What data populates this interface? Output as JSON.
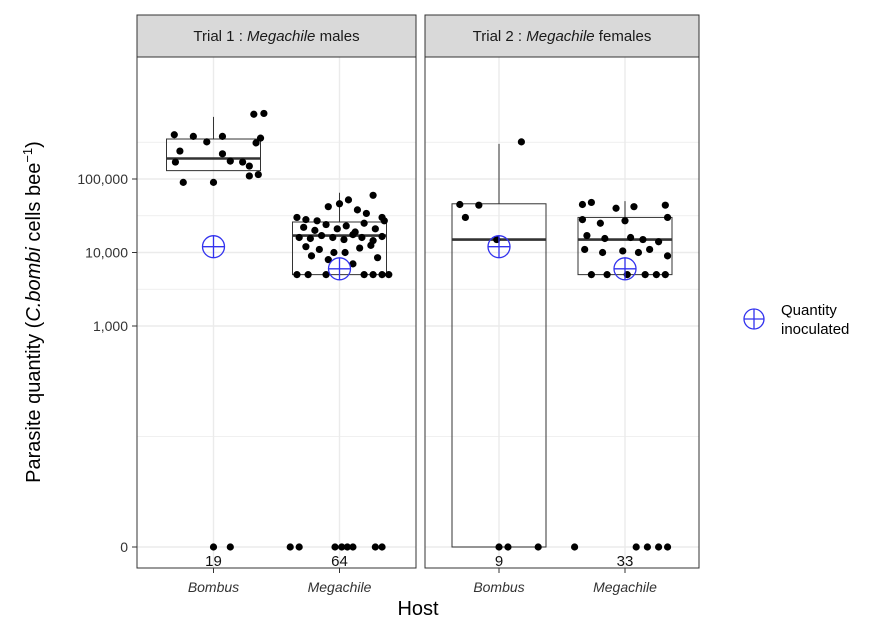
{
  "chart_data": {
    "type": "box-scatter",
    "xlabel": "Host",
    "ylabel": {
      "prefix": "Parasite quantity (",
      "italic": "C.bombi",
      "suffix": " cells bee",
      "superscript": "−1",
      "close": ")"
    },
    "y_scale": "log",
    "y_ticks": [
      {
        "value": 0,
        "label": "0"
      },
      {
        "value": 1000,
        "label": "1,000"
      },
      {
        "value": 10000,
        "label": "10,000"
      },
      {
        "value": 100000,
        "label": "100,000"
      }
    ],
    "categories": [
      "Bombus",
      "Megachile"
    ],
    "legend": {
      "label_line1": "Quantity",
      "label_line2": "inoculated",
      "position": "right"
    },
    "colors": {
      "inoculated": "#3333ee",
      "points": "#000000",
      "grid": "#ebebeb",
      "strip_bg": "#d9d9d9"
    },
    "panels": [
      {
        "strip": {
          "prefix": "Trial 1 : ",
          "italic": "Megachile",
          "suffix": " males"
        },
        "groups": [
          {
            "host": "Bombus",
            "n": "19",
            "inoculated": 12000,
            "box": {
              "lower": 130000,
              "q1": 130000,
              "median": 190000,
              "q3": 350000,
              "upper": 700000
            },
            "points": [
              {
                "x": -0.35,
                "y": 400000
              },
              {
                "x": -0.18,
                "y": 380000
              },
              {
                "x": 0.08,
                "y": 380000
              },
              {
                "x": 0.42,
                "y": 360000
              },
              {
                "x": 0.38,
                "y": 310000
              },
              {
                "x": -0.06,
                "y": 320000
              },
              {
                "x": -0.3,
                "y": 240000
              },
              {
                "x": 0.08,
                "y": 220000
              },
              {
                "x": -0.34,
                "y": 170000
              },
              {
                "x": 0.15,
                "y": 175000
              },
              {
                "x": 0.26,
                "y": 170000
              },
              {
                "x": 0.32,
                "y": 150000
              },
              {
                "x": 0.4,
                "y": 115000
              },
              {
                "x": 0.32,
                "y": 110000
              },
              {
                "x": -0.27,
                "y": 90000
              },
              {
                "x": 0.0,
                "y": 90000
              },
              {
                "x": 0.45,
                "y": 780000
              },
              {
                "x": 0.36,
                "y": 760000
              },
              {
                "x": 0.0,
                "y": 0
              },
              {
                "x": 0.15,
                "y": 0
              }
            ]
          },
          {
            "host": "Megachile",
            "n": "64",
            "inoculated": 6000,
            "box": {
              "lower": 5000,
              "q1": 5000,
              "median": 17000,
              "q3": 26000,
              "upper": 65000
            },
            "points": [
              {
                "x": -0.38,
                "y": 30000
              },
              {
                "x": -0.3,
                "y": 28000
              },
              {
                "x": -0.2,
                "y": 27000
              },
              {
                "x": -0.1,
                "y": 42000
              },
              {
                "x": 0.0,
                "y": 46000
              },
              {
                "x": 0.08,
                "y": 52000
              },
              {
                "x": 0.16,
                "y": 38000
              },
              {
                "x": 0.24,
                "y": 34000
              },
              {
                "x": 0.3,
                "y": 60000
              },
              {
                "x": 0.38,
                "y": 30000
              },
              {
                "x": -0.32,
                "y": 22000
              },
              {
                "x": -0.22,
                "y": 20000
              },
              {
                "x": -0.12,
                "y": 24000
              },
              {
                "x": -0.02,
                "y": 21000
              },
              {
                "x": 0.06,
                "y": 23000
              },
              {
                "x": 0.14,
                "y": 19000
              },
              {
                "x": 0.22,
                "y": 25000
              },
              {
                "x": 0.32,
                "y": 21000
              },
              {
                "x": 0.4,
                "y": 27000
              },
              {
                "x": -0.36,
                "y": 16000
              },
              {
                "x": -0.26,
                "y": 15500
              },
              {
                "x": -0.16,
                "y": 17000
              },
              {
                "x": -0.06,
                "y": 16000
              },
              {
                "x": 0.04,
                "y": 15000
              },
              {
                "x": 0.12,
                "y": 17500
              },
              {
                "x": 0.2,
                "y": 16000
              },
              {
                "x": 0.3,
                "y": 14500
              },
              {
                "x": 0.38,
                "y": 16500
              },
              {
                "x": -0.3,
                "y": 12000
              },
              {
                "x": -0.18,
                "y": 11000
              },
              {
                "x": -0.05,
                "y": 10000
              },
              {
                "x": 0.05,
                "y": 10000
              },
              {
                "x": 0.18,
                "y": 11500
              },
              {
                "x": 0.28,
                "y": 12500
              },
              {
                "x": -0.1,
                "y": 8000
              },
              {
                "x": 0.12,
                "y": 7000
              },
              {
                "x": -0.38,
                "y": 5000
              },
              {
                "x": -0.28,
                "y": 5000
              },
              {
                "x": -0.12,
                "y": 5000
              },
              {
                "x": 0.22,
                "y": 5000
              },
              {
                "x": 0.3,
                "y": 5000
              },
              {
                "x": 0.38,
                "y": 5000
              },
              {
                "x": 0.44,
                "y": 5000
              },
              {
                "x": -0.25,
                "y": 9000
              },
              {
                "x": 0.34,
                "y": 8500
              },
              {
                "x": -0.44,
                "y": 0
              },
              {
                "x": -0.36,
                "y": 0
              },
              {
                "x": -0.04,
                "y": 0
              },
              {
                "x": 0.02,
                "y": 0
              },
              {
                "x": 0.07,
                "y": 0
              },
              {
                "x": 0.12,
                "y": 0
              },
              {
                "x": 0.32,
                "y": 0
              },
              {
                "x": 0.38,
                "y": 0
              }
            ]
          }
        ]
      },
      {
        "strip": {
          "prefix": "Trial 2 : ",
          "italic": "Megachile",
          "suffix": " females"
        },
        "groups": [
          {
            "host": "Bombus",
            "n": "9",
            "inoculated": 12000,
            "box": {
              "lower": 0,
              "q1": 0,
              "median": 15000,
              "q3": 46000,
              "upper": 300000
            },
            "points": [
              {
                "x": -0.35,
                "y": 45000
              },
              {
                "x": -0.18,
                "y": 44000
              },
              {
                "x": -0.3,
                "y": 30000
              },
              {
                "x": -0.02,
                "y": 15000
              },
              {
                "x": 0.2,
                "y": 320000
              },
              {
                "x": 0.0,
                "y": 0
              },
              {
                "x": 0.08,
                "y": 0
              },
              {
                "x": 0.35,
                "y": 0
              }
            ]
          },
          {
            "host": "Megachile",
            "n": "33",
            "inoculated": 6000,
            "box": {
              "lower": 5000,
              "q1": 5000,
              "median": 15000,
              "q3": 30000,
              "upper": 50000
            },
            "points": [
              {
                "x": -0.38,
                "y": 45000
              },
              {
                "x": -0.3,
                "y": 48000
              },
              {
                "x": -0.08,
                "y": 40000
              },
              {
                "x": 0.08,
                "y": 42000
              },
              {
                "x": 0.36,
                "y": 44000
              },
              {
                "x": -0.38,
                "y": 28000
              },
              {
                "x": -0.22,
                "y": 25000
              },
              {
                "x": 0.0,
                "y": 27000
              },
              {
                "x": 0.38,
                "y": 30000
              },
              {
                "x": -0.34,
                "y": 17000
              },
              {
                "x": -0.18,
                "y": 15500
              },
              {
                "x": 0.05,
                "y": 16000
              },
              {
                "x": 0.16,
                "y": 15000
              },
              {
                "x": 0.3,
                "y": 14000
              },
              {
                "x": -0.36,
                "y": 11000
              },
              {
                "x": -0.2,
                "y": 10000
              },
              {
                "x": -0.02,
                "y": 10500
              },
              {
                "x": 0.12,
                "y": 10000
              },
              {
                "x": 0.22,
                "y": 11000
              },
              {
                "x": 0.38,
                "y": 9000
              },
              {
                "x": -0.3,
                "y": 5000
              },
              {
                "x": -0.16,
                "y": 5000
              },
              {
                "x": 0.02,
                "y": 5000
              },
              {
                "x": 0.18,
                "y": 5000
              },
              {
                "x": 0.28,
                "y": 5000
              },
              {
                "x": 0.36,
                "y": 5000
              },
              {
                "x": -0.45,
                "y": 0
              },
              {
                "x": 0.1,
                "y": 0
              },
              {
                "x": 0.2,
                "y": 0
              },
              {
                "x": 0.3,
                "y": 0
              },
              {
                "x": 0.38,
                "y": 0
              }
            ]
          }
        ]
      }
    ]
  }
}
